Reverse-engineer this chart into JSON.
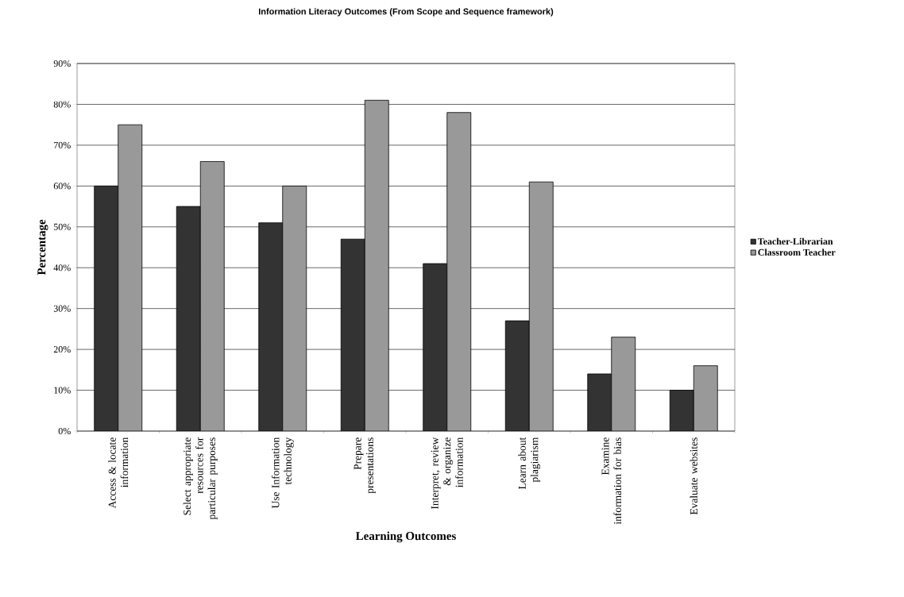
{
  "chart_data": {
    "type": "bar",
    "title": "Information Literacy Outcomes (From Scope and Sequence framework)",
    "xlabel": "Learning Outcomes",
    "ylabel": "Percentage",
    "categories": [
      "Access & locate information",
      "Select appropriate resources for particular purposes",
      "Use Information technology",
      "Prepare presentations",
      "Interpret, review & organize information",
      "Learn about plagiarism",
      "Examine information for bias",
      "Evaluate websites"
    ],
    "series": [
      {
        "name": "Teacher-Librarian",
        "color": "#333333",
        "values": [
          60,
          55,
          51,
          47,
          41,
          27,
          14,
          10
        ]
      },
      {
        "name": "Classroom Teacher",
        "color": "#999999",
        "values": [
          75,
          66,
          60,
          81,
          78,
          61,
          23,
          16
        ]
      }
    ],
    "ylim": [
      0,
      90
    ],
    "yticks": [
      {
        "value": 0,
        "label": "0%"
      },
      {
        "value": 10,
        "label": "10%"
      },
      {
        "value": 20,
        "label": "20%"
      },
      {
        "value": 30,
        "label": "30%"
      },
      {
        "value": 40,
        "label": "40%"
      },
      {
        "value": 50,
        "label": "50%"
      },
      {
        "value": 60,
        "label": "60%"
      },
      {
        "value": 70,
        "label": "70%"
      },
      {
        "value": 80,
        "label": "80%"
      },
      {
        "value": 90,
        "label": "90%"
      }
    ],
    "grid": "y",
    "legend": "right"
  }
}
